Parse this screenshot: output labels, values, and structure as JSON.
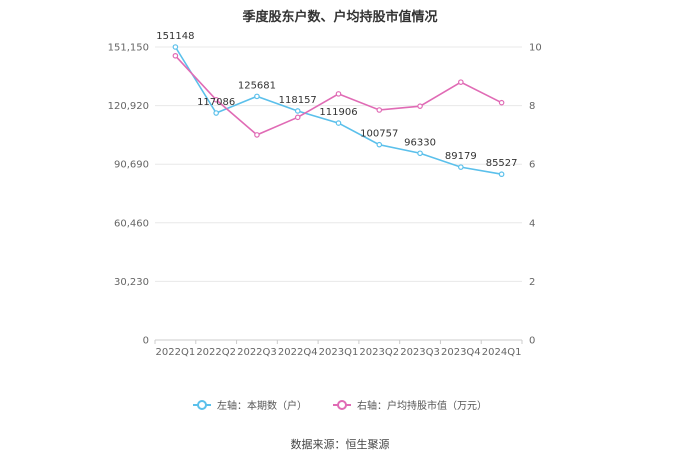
{
  "title": "季度股东户数、户均持股市值情况",
  "source": "数据来源：恒生聚源",
  "colors": {
    "left_series": "#5bc0eb",
    "right_series": "#e06bb5",
    "grid": "#e8e8e8",
    "axis_text": "#666666"
  },
  "chart_data": {
    "type": "line",
    "title": "季度股东户数、户均持股市值情况",
    "categories": [
      "2022Q1",
      "2022Q2",
      "2022Q3",
      "2022Q4",
      "2023Q1",
      "2023Q2",
      "2023Q3",
      "2023Q4",
      "2024Q1"
    ],
    "left_axis": {
      "ticks": [
        "0",
        "30,230",
        "60,460",
        "90,690",
        "120,920",
        "151,150"
      ],
      "ylim": [
        0,
        151150
      ]
    },
    "right_axis": {
      "ticks": [
        "0",
        "2",
        "4",
        "6",
        "8",
        "10"
      ],
      "ylim": [
        0,
        10
      ]
    },
    "grid": true,
    "legend_position": "bottom",
    "series": [
      {
        "name": "左轴：本期数（户）",
        "axis": "left",
        "values": [
          151148,
          117086,
          125681,
          118157,
          111906,
          100757,
          96330,
          89179,
          85527
        ],
        "labels": [
          "151148",
          "117086",
          "125681",
          "118157",
          "111906",
          "100757",
          "96330",
          "89179",
          "85527"
        ]
      },
      {
        "name": "右轴：户均持股市值（万元）",
        "axis": "right",
        "values": [
          9.7,
          8.2,
          7.0,
          7.6,
          8.4,
          7.85,
          7.98,
          8.8,
          8.1
        ]
      }
    ]
  }
}
